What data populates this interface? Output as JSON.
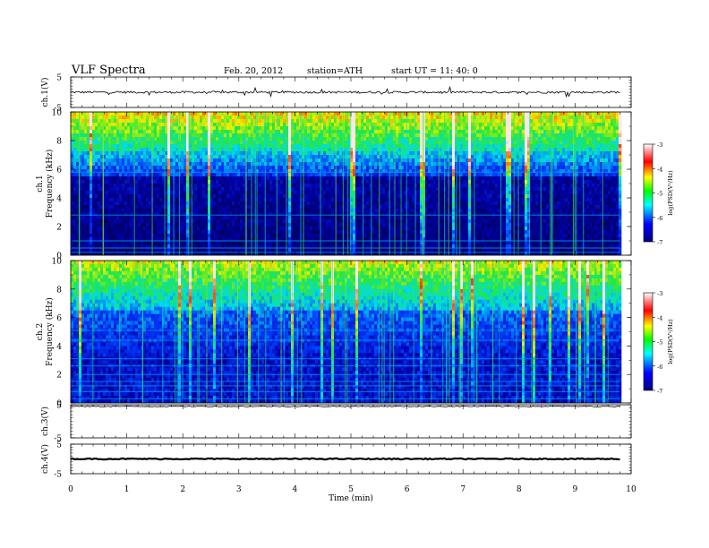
{
  "header": {
    "title": "VLF  Spectra",
    "date": "Feb. 20, 2012",
    "station": "station=ATH",
    "start": "start  UT  =    11: 40: 0"
  },
  "chart_data": {
    "type": "heatmap",
    "xlabel": "Time  (min)",
    "xlim": [
      0,
      10
    ],
    "x_ticks": [
      "0",
      "1",
      "2",
      "3",
      "4",
      "5",
      "6",
      "7",
      "8",
      "9",
      "10"
    ],
    "data_end_min": 9.8,
    "panels": [
      {
        "id": "ch1-waveform",
        "kind": "waveform",
        "ylabel": "ch.1(V)",
        "ylim": [
          -5,
          5
        ],
        "y_ticks": [
          "5",
          "-5"
        ],
        "baseline": 0
      },
      {
        "id": "ch1-spectrogram",
        "kind": "spectrogram",
        "ylabel_channel": "ch.1",
        "ylabel": "Frequency  (kHz)",
        "ylim": [
          0,
          10
        ],
        "y_ticks": [
          "0",
          "2",
          "4",
          "6",
          "8",
          "10"
        ]
      },
      {
        "id": "ch2-spectrogram",
        "kind": "spectrogram",
        "ylabel_channel": "ch.2",
        "ylabel": "Frequency  (kHz)",
        "ylim": [
          0,
          10
        ],
        "y_ticks": [
          "0",
          "2",
          "4",
          "6",
          "8",
          "10"
        ]
      },
      {
        "id": "ch3-waveform",
        "kind": "waveform",
        "ylabel": "ch.3(V)",
        "ylim": [
          -5,
          5
        ],
        "y_ticks": [
          "5",
          "-5"
        ],
        "baseline": 4.5
      },
      {
        "id": "ch4-waveform",
        "kind": "waveform",
        "ylabel": "ch.4(V)",
        "ylim": [
          -5,
          5
        ],
        "y_ticks": [
          "5",
          "-5"
        ],
        "baseline": 0
      }
    ],
    "colorbar": {
      "label": "log(PSD(V²/Hz)",
      "range": [
        -7,
        -3
      ],
      "ticks": [
        "-3",
        "-4",
        "-5",
        "-6",
        "-7"
      ],
      "colors": [
        "#000080",
        "#0000ff",
        "#00ffff",
        "#00ff00",
        "#ffff00",
        "#ff0000",
        "#ffffff"
      ]
    }
  }
}
